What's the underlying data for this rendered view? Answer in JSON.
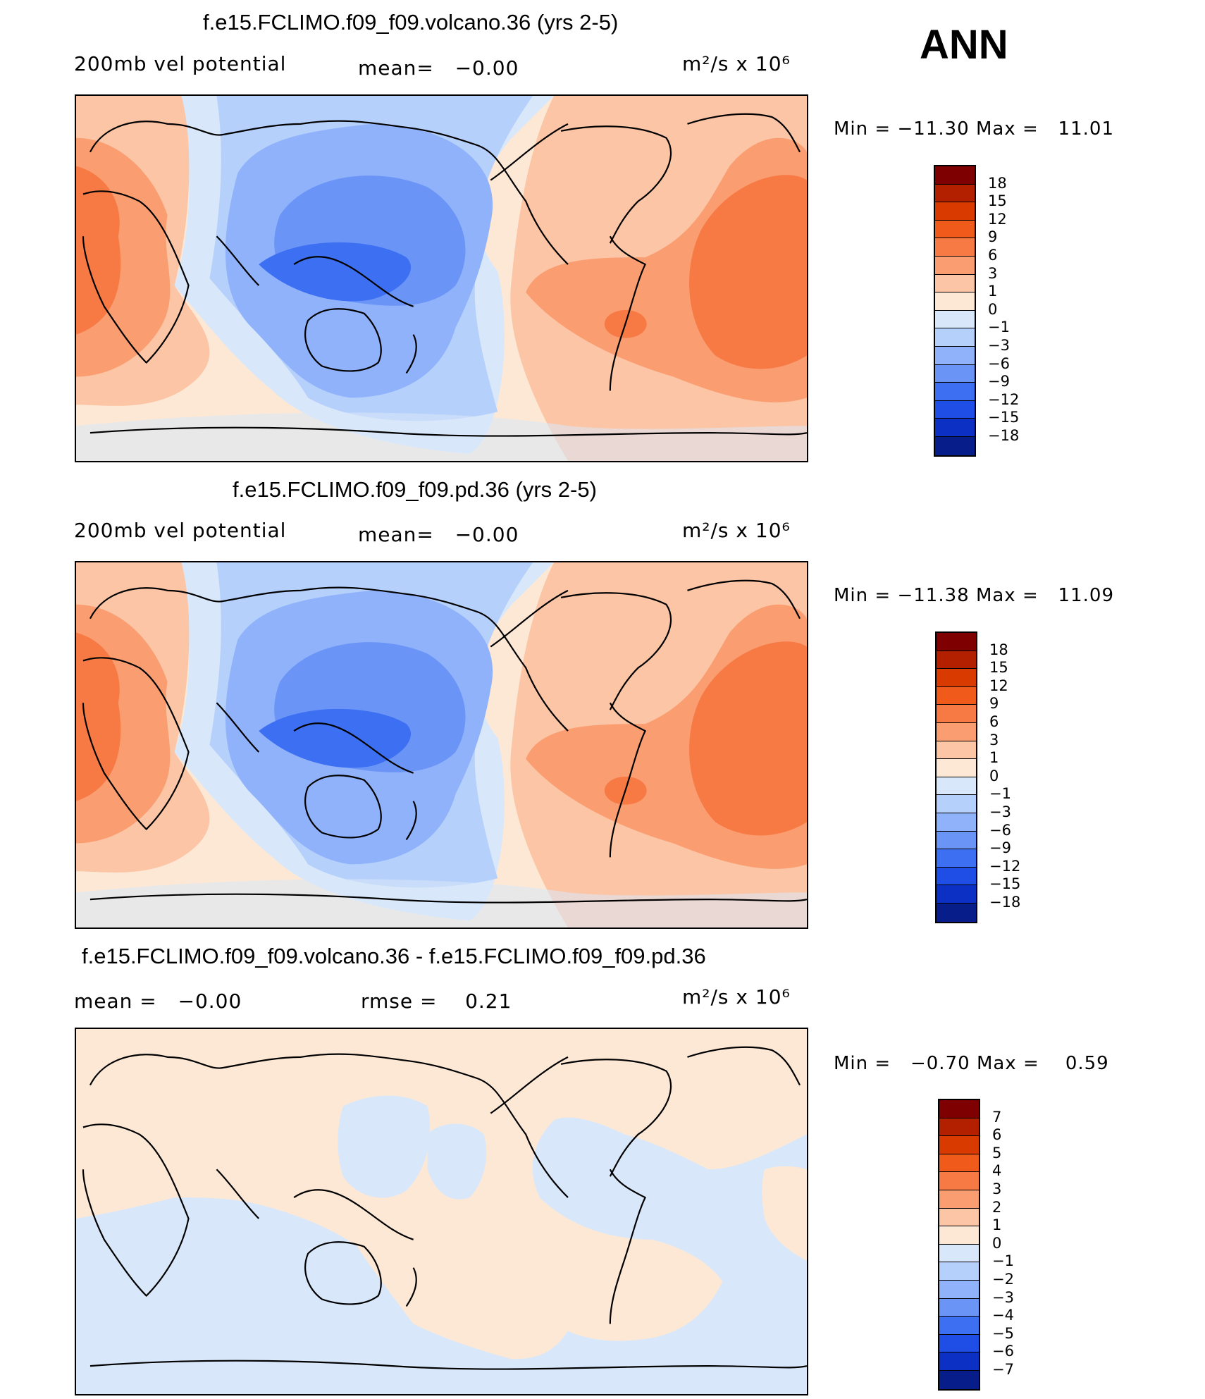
{
  "season": "ANN",
  "panels": [
    {
      "title": "f.e15.FCLIMO.f09_f09.volcano.36 (yrs 2-5)",
      "left_label": "200mb vel potential",
      "mean_label": "mean=",
      "mean_value": "−0.00",
      "units": "m²/s x 10⁶",
      "min_label": "Min  =",
      "min_value": "−11.30",
      "max_label": "Max  =",
      "max_value": "11.01"
    },
    {
      "title": "f.e15.FCLIMO.f09_f09.pd.36 (yrs 2-5)",
      "left_label": "200mb vel potential",
      "mean_label": "mean=",
      "mean_value": "−0.00",
      "units": "m²/s x 10⁶",
      "min_label": "Min  =",
      "min_value": "−11.38",
      "max_label": "Max  =",
      "max_value": "11.09"
    },
    {
      "title": "f.e15.FCLIMO.f09_f09.volcano.36 - f.e15.FCLIMO.f09_f09.pd.36",
      "left_label": "mean  =",
      "left_value": "−0.00",
      "mean_label": "rmse  =",
      "mean_value": "0.21",
      "units": "m²/s x 10⁶",
      "min_label": "Min  =",
      "min_value": "−0.70",
      "max_label": "Max  =",
      "max_value": "0.59"
    }
  ],
  "colorbars": {
    "abs": {
      "labels": [
        "18",
        "15",
        "12",
        "9",
        "6",
        "3",
        "1",
        "0",
        "−1",
        "−3",
        "−6",
        "−9",
        "−12",
        "−15",
        "−18"
      ],
      "colors": [
        "#7f0000",
        "#b22000",
        "#d93a00",
        "#f05a1a",
        "#f77a45",
        "#fa9e72",
        "#fcc5a5",
        "#fde8d6",
        "#d8e8fa",
        "#b5d0fb",
        "#8fb2fb",
        "#6a94f6",
        "#3d6ff2",
        "#1f4ee6",
        "#0c2fc4",
        "#071e8a"
      ]
    },
    "diff": {
      "labels": [
        "7",
        "6",
        "5",
        "4",
        "3",
        "2",
        "1",
        "0",
        "−1",
        "−2",
        "−3",
        "−4",
        "−5",
        "−6",
        "−7"
      ],
      "colors": [
        "#7f0000",
        "#b22000",
        "#d93a00",
        "#f05a1a",
        "#f77a45",
        "#fa9e72",
        "#fcc5a5",
        "#fde8d6",
        "#d8e8fa",
        "#b5d0fb",
        "#8fb2fb",
        "#6a94f6",
        "#3d6ff2",
        "#1f4ee6",
        "#0c2fc4",
        "#071e8a"
      ]
    }
  },
  "palette": {
    "pos_light": "#fde8d6",
    "pos_1": "#fcc5a5",
    "pos_3": "#fa9e72",
    "pos_6": "#f77a45",
    "neg_light": "#d8e8fa",
    "neg_1": "#b5d0fb",
    "neg_3": "#8fb2fb",
    "neg_6": "#6a94f6",
    "neg_9": "#3d6ff2"
  }
}
